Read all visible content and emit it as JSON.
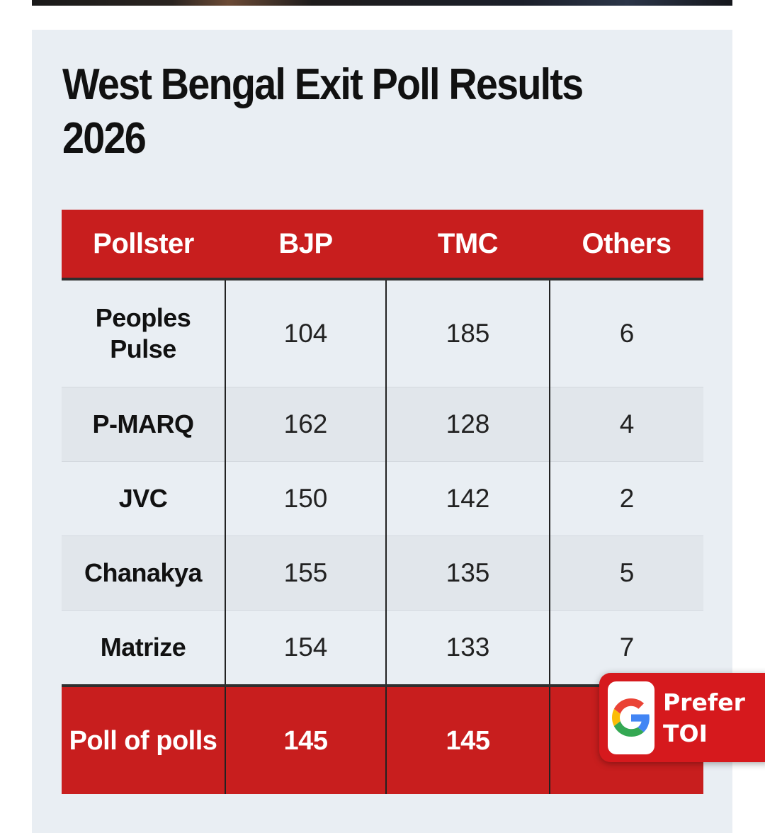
{
  "title": "West Bengal Exit Poll Results 2026",
  "table": {
    "headers": [
      "Pollster",
      "BJP",
      "TMC",
      "Others"
    ],
    "rows": [
      {
        "pollster": "Peoples Pulse",
        "bjp": "104",
        "tmc": "185",
        "others": "6"
      },
      {
        "pollster": "P-MARQ",
        "bjp": "162",
        "tmc": "128",
        "others": "4"
      },
      {
        "pollster": "JVC",
        "bjp": "150",
        "tmc": "142",
        "others": "2"
      },
      {
        "pollster": "Chanakya",
        "bjp": "155",
        "tmc": "135",
        "others": "5"
      },
      {
        "pollster": "Matrize",
        "bjp": "154",
        "tmc": "133",
        "others": "7"
      }
    ],
    "footer": {
      "label": "Poll of polls",
      "bjp": "145",
      "tmc": "145",
      "others": ""
    }
  },
  "prefer_badge": {
    "line1": "Prefer",
    "line2": "TOI",
    "icon": "google-g-icon"
  },
  "colors": {
    "accent_red": "#c81e1e",
    "card_background": "#e9eef3",
    "badge_red": "#d6191d"
  }
}
